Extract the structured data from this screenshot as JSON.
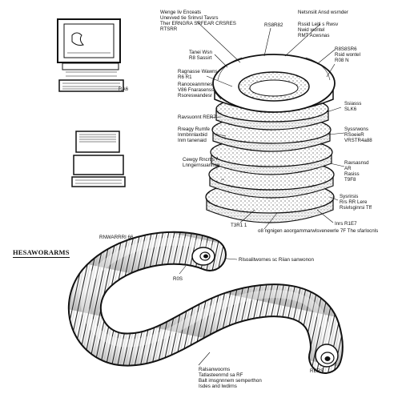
{
  "labels": {
    "computer_top": "RA6",
    "stack_header": [
      "Wenge liv Enceats",
      "Unevved tie Srinvsl Tavsrs",
      "Ther ERNGRA SRFEAR CRSRES",
      "RTSRR"
    ],
    "stack_top_center": "RS8R82",
    "stack_top_right": [
      "Netsnsiit Ansd wsrnder",
      "Rssid Leiti s Rwsv",
      "Nwid wontel",
      "RMT Acwsnas"
    ],
    "stack_left_1": [
      "Tanei Wsn",
      "R8 Sassirt"
    ],
    "stack_right_1": [
      "R8S8SR6",
      "Rsid wontel",
      "R08 N"
    ],
    "stack_left_2": [
      "Ragnasse Wawns",
      "R6 R1"
    ],
    "stack_left_3": [
      "Ranoceanmnes",
      "V86 Fnarasenss",
      "Rsoreswandesr"
    ],
    "stack_left_4": "Ravsuonnt RER7",
    "stack_left_5": [
      "Rreagy Rumfe",
      "Inmbnnlaxbid",
      "Inm tanenaid"
    ],
    "stack_left_6": [
      "Cewgy Rncrtis",
      "Lnngernsuanrian"
    ],
    "stack_right_2": [
      "Ssiasss",
      "SLK6"
    ],
    "stack_right_3": [
      "Syssrwons",
      "RSoeieR",
      "VRSTR4a88"
    ],
    "stack_right_4": [
      "Ravsasnsd",
      "AR",
      "Rasiss",
      "T9F8"
    ],
    "stack_right_5": [
      "Sysrirsis",
      "Rrs RR Lere",
      "Rsivlsginrsi Tff"
    ],
    "stack_bottom_left": "T3R1 1",
    "stack_bottom_right": "Inrs R1E7",
    "stack_bottom_caption": "o8 ngnigen aoorgammarwlsvenewrle 7F The sfarlocnls",
    "worm_top": "RNWARRRI 66",
    "worm_pointer": "Rlsoalitwornes sc Riian sanwonon",
    "worm_left": "R0S",
    "worm_tail": "RERS",
    "worm_bottom": [
      "Ralsanwoorns",
      "Tatlasteenrnd sa RF",
      "Balt imsgnnnem semperthon",
      "Isdes and lwdirns"
    ]
  },
  "title": "HESAWORARMS",
  "colors": {
    "ink": "#111111",
    "paper": "#ffffff",
    "shade": "#8a8a8a",
    "ring_fill": "#f1f1f1"
  },
  "icons": [
    "desktop-computer-icon",
    "laptop-computer-icon",
    "layered-rings-illustration",
    "earthworm-illustration"
  ]
}
